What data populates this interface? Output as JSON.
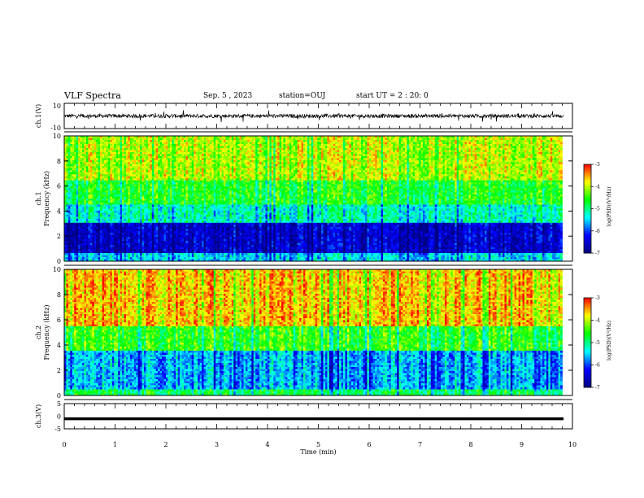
{
  "header": {
    "title": "VLF Spectra",
    "date": "Sep. 5 , 2023",
    "station": "station=OUJ",
    "start_ut": "start UT = 2 : 20: 0"
  },
  "colors": {
    "waveform": "#000000",
    "colormap": [
      "#000080",
      "#0000ff",
      "#00ffff",
      "#00ff00",
      "#ffff00",
      "#ff0000",
      "#ffffff"
    ]
  },
  "chart_data": [
    {
      "type": "line",
      "panel": "ch1-waveform",
      "ylabel": "ch.1(V)",
      "ylim": [
        -10,
        10
      ],
      "yticks": [
        "10",
        "-10"
      ],
      "xlim": [
        0,
        10
      ],
      "description_values": {
        "baseline": 0,
        "typical_amplitude": 1.5,
        "spike_amplitude": 5
      }
    },
    {
      "type": "heatmap",
      "panel": "ch1-spectrogram",
      "ylabel": "ch.1 Frequency (kHz)",
      "ylim": [
        0,
        10
      ],
      "yticks": [
        "10",
        "8",
        "6",
        "4",
        "2",
        "0"
      ],
      "xlim": [
        0,
        9.8
      ],
      "colorbar": {
        "label": "log(PSD)(V²/Hz)",
        "range": [
          -7,
          -3
        ],
        "ticks": [
          "-3",
          "-4",
          "-5",
          "-6",
          "-7"
        ]
      },
      "bands": [
        {
          "freq_khz": [
            0,
            0.6
          ],
          "log_psd": -5.5
        },
        {
          "freq_khz": [
            0.6,
            3.0
          ],
          "log_psd": -6.5
        },
        {
          "freq_khz": [
            3.0,
            4.5
          ],
          "log_psd": -5.2
        },
        {
          "freq_khz": [
            4.5,
            6.5
          ],
          "log_psd": -4.6
        },
        {
          "freq_khz": [
            6.5,
            10
          ],
          "log_psd": -4.0
        }
      ]
    },
    {
      "type": "heatmap",
      "panel": "ch2-spectrogram",
      "ylabel": "ch.2 Frequency (kHz)",
      "ylim": [
        0,
        10
      ],
      "yticks": [
        "10",
        "8",
        "6",
        "4",
        "2",
        "0"
      ],
      "xlim": [
        0,
        9.8
      ],
      "colorbar": {
        "label": "log(PSD)(V²/Hz)",
        "range": [
          -7,
          -3
        ],
        "ticks": [
          "-3",
          "-4",
          "-5",
          "-6",
          "-7"
        ]
      },
      "bands": [
        {
          "freq_khz": [
            0,
            0.5
          ],
          "log_psd": -4.8
        },
        {
          "freq_khz": [
            0.5,
            3.5
          ],
          "log_psd": -5.6
        },
        {
          "freq_khz": [
            3.5,
            5.5
          ],
          "log_psd": -4.5
        },
        {
          "freq_khz": [
            5.5,
            10
          ],
          "log_psd": -3.6
        }
      ]
    },
    {
      "type": "line",
      "panel": "ch3-waveform",
      "ylabel": "ch.3(V)",
      "ylim": [
        -5,
        5
      ],
      "yticks": [
        "5",
        "0",
        "-5"
      ],
      "xlim": [
        0,
        10
      ],
      "values": {
        "constant": -1
      }
    }
  ],
  "xaxis": {
    "label": "Time (min)",
    "ticks": [
      "0",
      "1",
      "2",
      "3",
      "4",
      "5",
      "6",
      "7",
      "8",
      "9",
      "10"
    ]
  }
}
